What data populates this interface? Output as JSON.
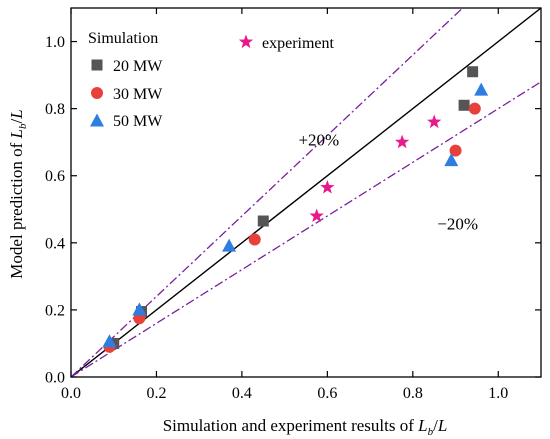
{
  "chart_data": {
    "type": "scatter",
    "xlabel": "Simulation and experiment results of L_b/L",
    "ylabel": "Model prediction of L_b/L",
    "xlim": [
      0,
      1.1
    ],
    "ylim": [
      0,
      1.1
    ],
    "x_ticks": [
      0.0,
      0.2,
      0.4,
      0.6,
      0.8,
      1.0
    ],
    "y_ticks": [
      0.0,
      0.2,
      0.4,
      0.6,
      0.8,
      1.0
    ],
    "x_tick_labels": [
      "0.0",
      "0.2",
      "0.4",
      "0.6",
      "0.8",
      "1.0"
    ],
    "y_tick_labels": [
      "0.0",
      "0.2",
      "0.4",
      "0.6",
      "0.8",
      "1.0"
    ],
    "legend_group_title": "Simulation",
    "series": [
      {
        "name": "20 MW",
        "marker": "square",
        "color": "#555555",
        "x": [
          0.1,
          0.165,
          0.45,
          0.92,
          0.94
        ],
        "y": [
          0.1,
          0.195,
          0.465,
          0.81,
          0.91
        ]
      },
      {
        "name": "30 MW",
        "marker": "circle",
        "color": "#e8413c",
        "x": [
          0.09,
          0.16,
          0.43,
          0.9,
          0.945
        ],
        "y": [
          0.09,
          0.175,
          0.41,
          0.675,
          0.8
        ]
      },
      {
        "name": "50 MW",
        "marker": "triangle",
        "color": "#2e7de1",
        "x": [
          0.09,
          0.16,
          0.37,
          0.89,
          0.96
        ],
        "y": [
          0.105,
          0.2,
          0.39,
          0.645,
          0.855
        ]
      },
      {
        "name": "experiment",
        "marker": "star",
        "color": "#e8198a",
        "x": [
          0.575,
          0.6,
          0.775,
          0.85
        ],
        "y": [
          0.48,
          0.565,
          0.7,
          0.76
        ]
      }
    ],
    "reference_lines": [
      {
        "slope": 1.0,
        "style": "solid",
        "color": "#000000"
      },
      {
        "slope": 1.2,
        "style": "dash-dot",
        "color": "#7a1f9c"
      },
      {
        "slope": 0.8,
        "style": "dash-dot",
        "color": "#7a1f9c"
      }
    ],
    "annotations": [
      {
        "text": "+20%",
        "x": 0.58,
        "y": 0.69
      },
      {
        "text": "−20%",
        "x": 0.905,
        "y": 0.44
      }
    ],
    "legend_position": "top-left"
  }
}
